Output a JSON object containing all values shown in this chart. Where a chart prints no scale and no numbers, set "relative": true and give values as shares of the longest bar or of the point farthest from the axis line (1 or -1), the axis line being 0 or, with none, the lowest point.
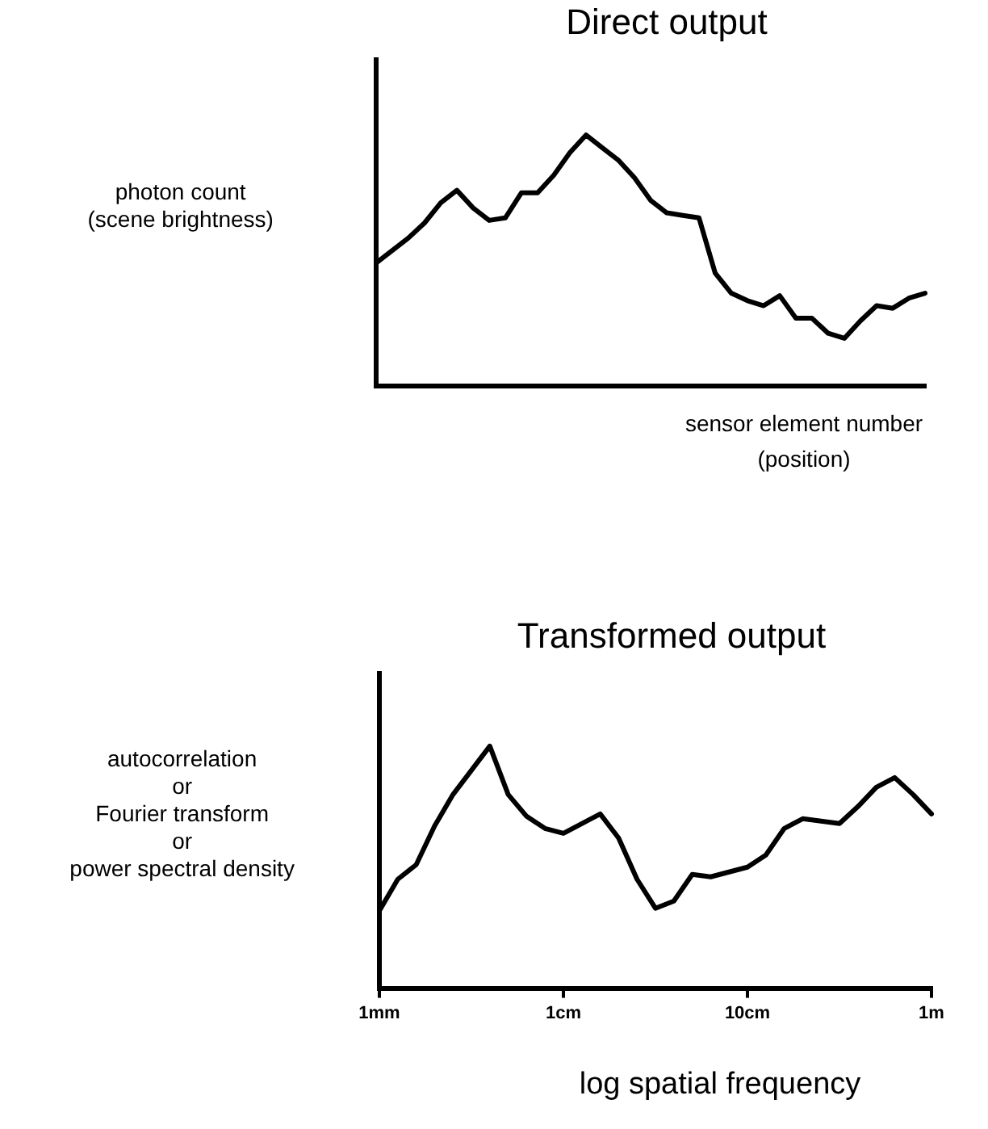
{
  "chart_data": [
    {
      "type": "line",
      "title": "Direct output",
      "xlabel": "sensor element number\n(position)",
      "ylabel": "photon count\n(scene brightness)",
      "relative": true,
      "tick_labels": false,
      "grid": false,
      "legend": false,
      "categories": [
        null,
        null,
        null,
        null,
        null,
        null,
        null,
        null,
        null,
        null,
        null,
        null,
        null,
        null,
        null,
        null,
        null,
        null,
        null,
        null,
        null,
        null,
        null,
        null,
        null,
        null,
        null,
        null,
        null,
        null,
        null,
        null,
        null,
        null,
        null
      ],
      "series": [
        {
          "color": "#000000",
          "values": [
            0.49,
            0.54,
            0.59,
            0.65,
            0.73,
            0.78,
            0.71,
            0.66,
            0.67,
            0.77,
            0.77,
            0.84,
            0.93,
            1.0,
            0.95,
            0.9,
            0.83,
            0.74,
            0.69,
            0.68,
            0.67,
            0.45,
            0.37,
            0.34,
            0.32,
            0.36,
            0.27,
            0.27,
            0.21,
            0.19,
            0.26,
            0.32,
            0.31,
            0.35,
            0.37
          ]
        }
      ]
    },
    {
      "type": "line",
      "title": "Transformed output",
      "xlabel": "log spatial frequency",
      "ylabel": "autocorrelation\nor\nFourier transform\nor\npower spectral density",
      "relative": true,
      "tick_labels": "x",
      "grid": false,
      "legend": false,
      "categories": [
        "1mm",
        null,
        null,
        null,
        null,
        null,
        null,
        null,
        null,
        null,
        "1cm",
        null,
        null,
        null,
        null,
        null,
        null,
        null,
        null,
        null,
        "10cm",
        null,
        null,
        null,
        null,
        null,
        null,
        null,
        null,
        null,
        "1m"
      ],
      "series": [
        {
          "color": "#000000",
          "values": [
            0.32,
            0.45,
            0.51,
            0.67,
            0.8,
            0.9,
            1.0,
            0.8,
            0.71,
            0.66,
            0.64,
            0.68,
            0.72,
            0.62,
            0.45,
            0.33,
            0.36,
            0.47,
            0.46,
            0.48,
            0.5,
            0.55,
            0.66,
            0.7,
            0.69,
            0.68,
            0.75,
            0.83,
            0.87,
            0.8,
            0.72
          ]
        }
      ]
    }
  ]
}
